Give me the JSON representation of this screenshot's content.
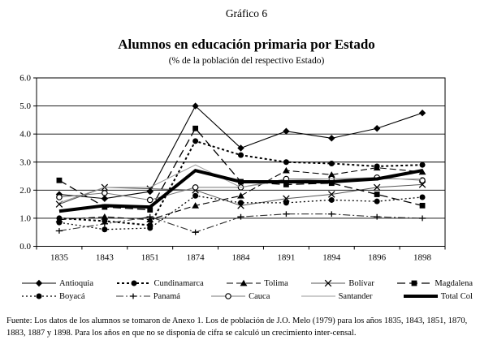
{
  "titles": {
    "kicker": "Gráfico 6",
    "title": "Alumnos en educación primaria por Estado",
    "subtitle": "(% de la población del respectivo Estado)"
  },
  "chart_data": {
    "type": "line",
    "title": "Alumnos en educación primaria por Estado",
    "subtitle_pct": "(% de la población del respectivo Estado)",
    "categories": [
      "1835",
      "1843",
      "1851",
      "1874",
      "1884",
      "1891",
      "1894",
      "1896",
      "1898"
    ],
    "ylim": [
      0,
      6
    ],
    "ytick_labels": [
      "0.0",
      "1.0",
      "2.0",
      "3.0",
      "4.0",
      "5.0",
      "6.0"
    ],
    "grid": "horizontal",
    "legend_position": "bottom",
    "series": [
      {
        "name": "Antioquia",
        "values": [
          1.85,
          1.7,
          1.95,
          5.0,
          3.5,
          4.1,
          3.85,
          4.2,
          4.75
        ],
        "marker": "diamond",
        "dash": "none",
        "width": 1.1,
        "color": "#000000"
      },
      {
        "name": "Cundinamarca",
        "values": [
          1.0,
          0.9,
          0.75,
          3.75,
          3.25,
          3.0,
          2.95,
          2.85,
          2.9
        ],
        "marker": "circle",
        "dash": "3,3",
        "width": 2,
        "color": "#000000"
      },
      {
        "name": "Tolima",
        "values": [
          0.95,
          1.05,
          0.95,
          1.45,
          1.8,
          2.7,
          2.55,
          2.8,
          2.65
        ],
        "marker": "triangle",
        "dash": "8,4",
        "width": 1.1,
        "color": "#000000"
      },
      {
        "name": "Bolívar",
        "values": [
          1.5,
          2.1,
          2.05,
          2.0,
          1.45,
          1.7,
          1.85,
          2.1,
          2.2
        ],
        "marker": "x",
        "dash": "none",
        "width": 1,
        "color": "#555555"
      },
      {
        "name": "Magdalena",
        "values": [
          2.35,
          1.4,
          1.3,
          4.2,
          2.3,
          2.2,
          2.25,
          1.85,
          1.45
        ],
        "marker": "square",
        "dash": "10,5",
        "width": 1.3,
        "color": "#000000"
      },
      {
        "name": "Boyacá",
        "values": [
          0.85,
          0.6,
          0.65,
          1.8,
          1.55,
          1.55,
          1.65,
          1.6,
          1.75
        ],
        "marker": "circle",
        "dash": "2,3",
        "width": 1.3,
        "color": "#000000"
      },
      {
        "name": "Panamá",
        "values": [
          0.55,
          0.8,
          1.05,
          0.5,
          1.05,
          1.15,
          1.15,
          1.05,
          1.0
        ],
        "marker": "plus",
        "dash": "9,3,2,3",
        "width": 1.1,
        "color": "#333333"
      },
      {
        "name": "Cauca",
        "values": [
          1.75,
          1.9,
          1.65,
          2.1,
          2.1,
          2.4,
          2.4,
          2.45,
          2.35
        ],
        "marker": "open-circle",
        "dash": "none",
        "width": 1,
        "color": "#777777"
      },
      {
        "name": "Santander",
        "values": [
          1.55,
          2.1,
          2.1,
          2.9,
          2.1,
          2.35,
          2.4,
          2.4,
          2.4
        ],
        "marker": "none",
        "dash": "none",
        "width": 1,
        "color": "#999999"
      },
      {
        "name": "Total Col",
        "values": [
          1.25,
          1.45,
          1.4,
          2.7,
          2.3,
          2.3,
          2.3,
          2.4,
          2.7
        ],
        "marker": "none",
        "dash": "none",
        "width": 4,
        "color": "#000000"
      }
    ]
  },
  "footer": {
    "text": "Fuente: Los datos de los alumnos se tomaron de Anexo 1. Los de población de J.O. Melo (1979) para los años 1835, 1843, 1851, 1870, 1883, 1887 y 1898. Para los años en que no se disponía de cifra se calculó un crecimiento inter-censal."
  }
}
